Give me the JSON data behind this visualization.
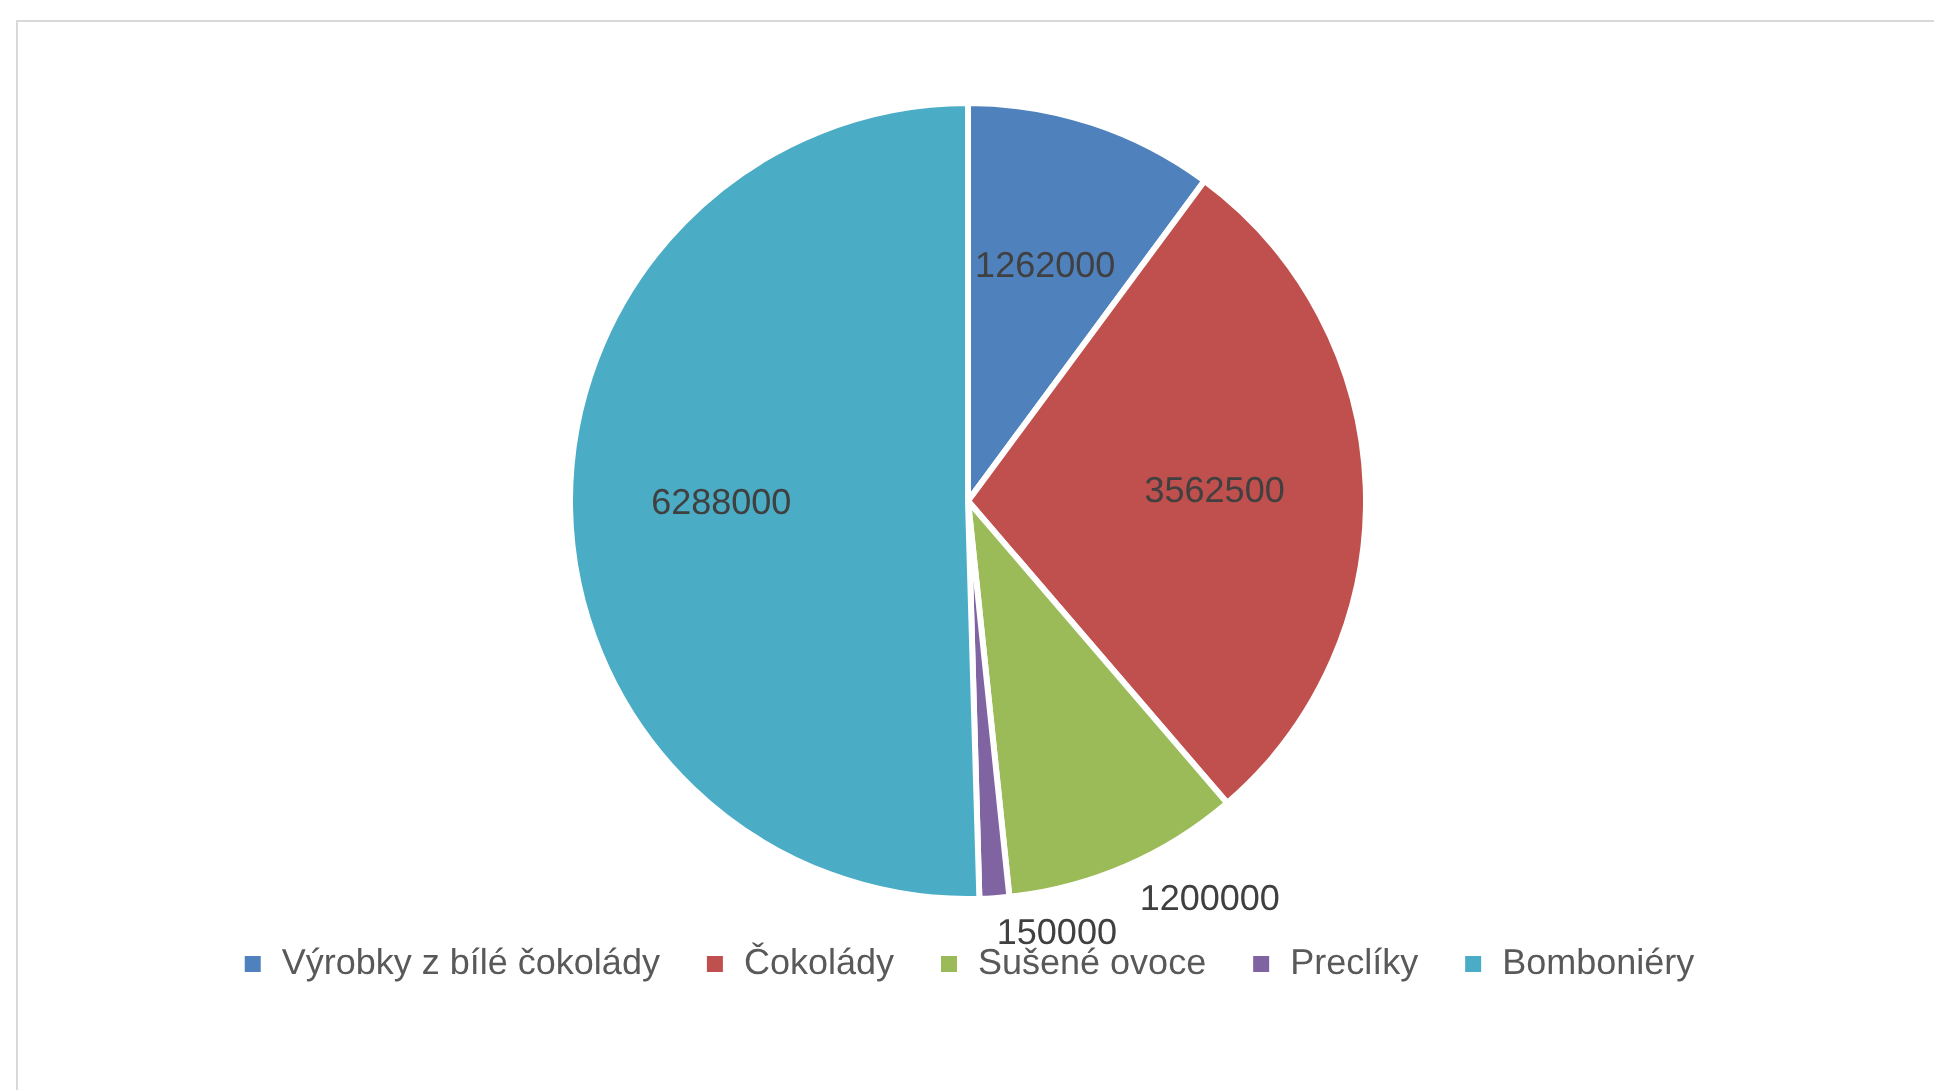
{
  "chart_data": {
    "type": "pie",
    "categories": [
      "Výrobky z bílé čokolády",
      "Čokolády",
      "Sušené ovoce",
      "Preclíky",
      "Bomboniéry"
    ],
    "values": [
      1262000,
      3562500,
      1200000,
      150000,
      6288000
    ],
    "colors": [
      "#4f81bd",
      "#c0504d",
      "#9bbb59",
      "#8064a2",
      "#4bacc6"
    ],
    "data_labels": true,
    "legend": "bottom"
  }
}
